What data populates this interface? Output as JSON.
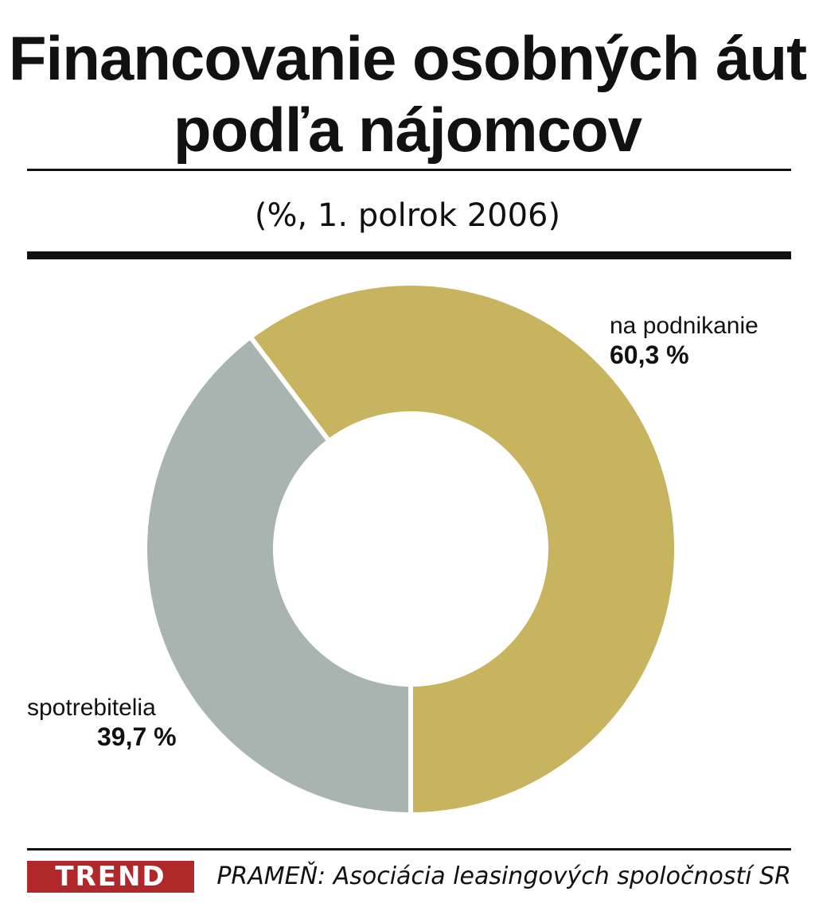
{
  "header": {
    "title_line1": "Financovanie osobných áut",
    "title_line2": "podľa nájomcov",
    "subtitle": "(%, 1. polrok 2006)"
  },
  "chart_data": {
    "type": "pie",
    "variant": "donut",
    "title": "Financovanie osobných áut podľa nájomcov",
    "subtitle": "(%, 1. polrok 2006)",
    "unit": "%",
    "slices": [
      {
        "label": "na podnikanie",
        "value": 60.3,
        "value_label": "60,3 %",
        "color": "#c8b45e"
      },
      {
        "label": "spotrebitelia",
        "value": 39.7,
        "value_label": "39,7 %",
        "color": "#a7b4b0"
      }
    ]
  },
  "footer": {
    "logo": "TREND",
    "logo_color": "#b0282a",
    "source": "PRAMEŇ: Asociácia leasingových spoločností SR"
  }
}
